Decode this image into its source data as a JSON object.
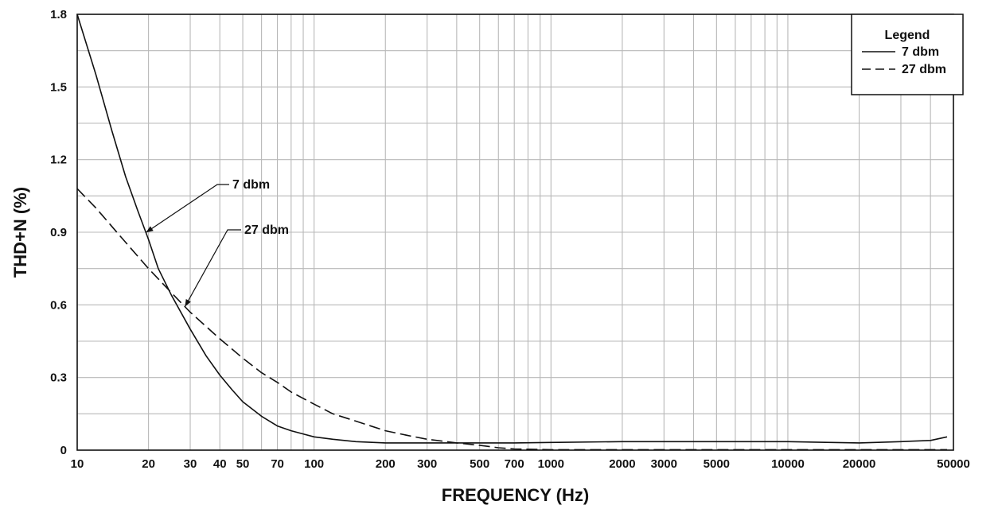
{
  "chart_data": {
    "type": "line",
    "title": "",
    "xlabel": "FREQUENCY (Hz)",
    "ylabel": "THD+N (%)",
    "x_scale": "log",
    "xlim": [
      10,
      50000
    ],
    "ylim": [
      0,
      1.8
    ],
    "grid": true,
    "legend_position": "top-right",
    "legend_title": "Legend",
    "x_ticks": [
      10,
      20,
      30,
      40,
      50,
      70,
      100,
      200,
      300,
      500,
      700,
      1000,
      2000,
      3000,
      5000,
      10000,
      20000,
      50000
    ],
    "x_tick_labels": [
      "10",
      "20",
      "30",
      "40",
      "50",
      "70",
      "100",
      "200",
      "300",
      "500",
      "700",
      "1000",
      "2000",
      "3000",
      "5000",
      "10000",
      "20000",
      "50000"
    ],
    "y_ticks": [
      0,
      0.3,
      0.6,
      0.9,
      1.2,
      1.5,
      1.8
    ],
    "y_tick_labels": [
      "0",
      "0.3",
      "0.6",
      "0.9",
      "1.2",
      "1.5",
      "1.8"
    ],
    "series": [
      {
        "name": "7 dbm",
        "style": "solid",
        "color": "#111111",
        "x": [
          10,
          12,
          14,
          16,
          18,
          20,
          22,
          25,
          30,
          35,
          40,
          45,
          50,
          60,
          70,
          80,
          100,
          120,
          150,
          200,
          300,
          500,
          700,
          1000,
          2000,
          5000,
          10000,
          20000,
          30000,
          40000,
          47000
        ],
        "y": [
          1.8,
          1.55,
          1.32,
          1.13,
          0.99,
          0.87,
          0.75,
          0.64,
          0.5,
          0.39,
          0.31,
          0.25,
          0.2,
          0.14,
          0.1,
          0.08,
          0.055,
          0.045,
          0.035,
          0.03,
          0.03,
          0.03,
          0.03,
          0.032,
          0.035,
          0.035,
          0.035,
          0.03,
          0.035,
          0.04,
          0.055
        ]
      },
      {
        "name": "27 dbm",
        "style": "dashed",
        "color": "#111111",
        "x": [
          10,
          12,
          15,
          20,
          25,
          30,
          40,
          50,
          60,
          70,
          80,
          100,
          120,
          150,
          200,
          250,
          300,
          400,
          500,
          600,
          700,
          1000,
          2000,
          5000,
          10000,
          20000,
          30000,
          40000,
          47000
        ],
        "y": [
          1.08,
          1.0,
          0.89,
          0.75,
          0.65,
          0.57,
          0.46,
          0.38,
          0.32,
          0.28,
          0.24,
          0.19,
          0.15,
          0.12,
          0.08,
          0.06,
          0.045,
          0.03,
          0.02,
          0.01,
          0.005,
          0.002,
          0.002,
          0.002,
          0.002,
          0.002,
          0.002,
          0.002,
          0.002
        ]
      }
    ],
    "annotations": [
      {
        "text": "7 dbm",
        "series": "7 dbm",
        "x": 19.5
      },
      {
        "text": "27 dbm",
        "series": "27 dbm",
        "x": 28.5
      }
    ]
  }
}
